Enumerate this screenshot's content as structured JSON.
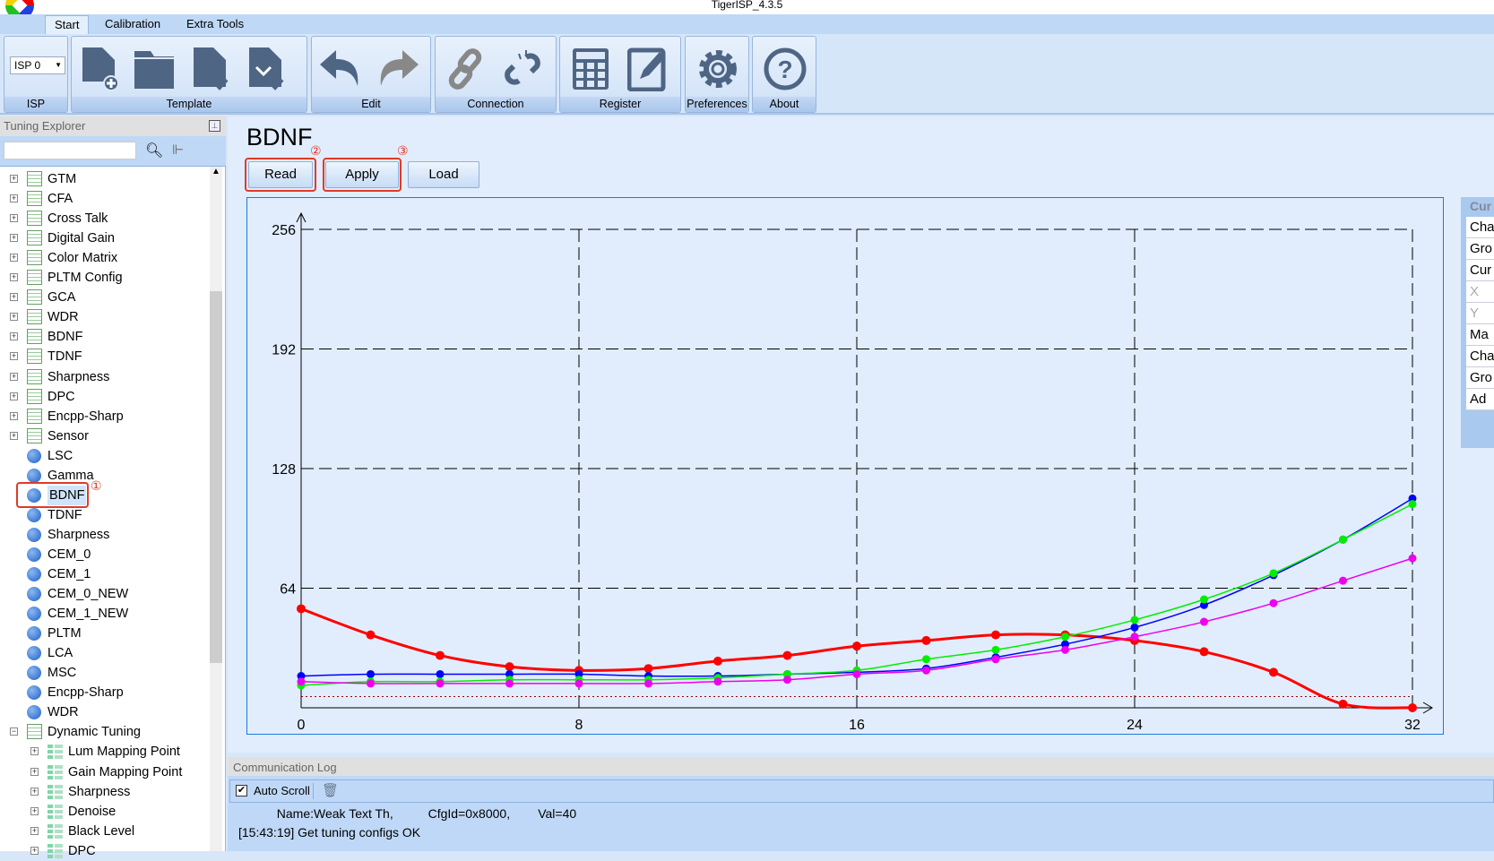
{
  "app": {
    "title": "TigerISP_4.3.5"
  },
  "tabs": [
    "Start",
    "Calibration",
    "Extra Tools"
  ],
  "ribbon": {
    "isp": {
      "select_value": "ISP 0",
      "label": "ISP"
    },
    "template": {
      "label": "Template"
    },
    "edit": {
      "label": "Edit"
    },
    "connection": {
      "label": "Connection"
    },
    "register": {
      "label": "Register"
    },
    "preferences": {
      "label": "Preferences"
    },
    "about": {
      "label": "About"
    }
  },
  "explorer": {
    "title": "Tuning Explorer",
    "search_value": "",
    "items": [
      {
        "label": "GTM",
        "type": "list",
        "expander": "+"
      },
      {
        "label": "CFA",
        "type": "list",
        "expander": "+"
      },
      {
        "label": "Cross Talk",
        "type": "list",
        "expander": "+"
      },
      {
        "label": "Digital Gain",
        "type": "list",
        "expander": "+"
      },
      {
        "label": "Color Matrix",
        "type": "list",
        "expander": "+"
      },
      {
        "label": "PLTM Config",
        "type": "list",
        "expander": "+"
      },
      {
        "label": "GCA",
        "type": "list",
        "expander": "+"
      },
      {
        "label": "WDR",
        "type": "list",
        "expander": "+"
      },
      {
        "label": "BDNF",
        "type": "list",
        "expander": "+"
      },
      {
        "label": "TDNF",
        "type": "list",
        "expander": "+"
      },
      {
        "label": "Sharpness",
        "type": "list",
        "expander": "+"
      },
      {
        "label": "DPC",
        "type": "list",
        "expander": "+"
      },
      {
        "label": "Encpp-Sharp",
        "type": "list",
        "expander": "+"
      },
      {
        "label": "Sensor",
        "type": "list",
        "expander": "+"
      },
      {
        "label": "LSC",
        "type": "ball"
      },
      {
        "label": "Gamma",
        "type": "ball"
      },
      {
        "label": "BDNF",
        "type": "ball",
        "selected": true
      },
      {
        "label": "TDNF",
        "type": "ball"
      },
      {
        "label": "Sharpness",
        "type": "ball"
      },
      {
        "label": "CEM_0",
        "type": "ball"
      },
      {
        "label": "CEM_1",
        "type": "ball"
      },
      {
        "label": "CEM_0_NEW",
        "type": "ball"
      },
      {
        "label": "CEM_1_NEW",
        "type": "ball"
      },
      {
        "label": "PLTM",
        "type": "ball"
      },
      {
        "label": "LCA",
        "type": "ball"
      },
      {
        "label": "MSC",
        "type": "ball"
      },
      {
        "label": "Encpp-Sharp",
        "type": "ball"
      },
      {
        "label": "WDR",
        "type": "ball"
      },
      {
        "label": "Dynamic Tuning",
        "type": "list",
        "expander": "−"
      },
      {
        "label": "Lum Mapping Point",
        "type": "grid",
        "expander": "+",
        "child": true
      },
      {
        "label": "Gain Mapping Point",
        "type": "grid",
        "expander": "+",
        "child": true
      },
      {
        "label": "Sharpness",
        "type": "grid",
        "expander": "+",
        "child": true
      },
      {
        "label": "Denoise",
        "type": "grid",
        "expander": "+",
        "child": true
      },
      {
        "label": "Black Level",
        "type": "grid",
        "expander": "+",
        "child": true
      },
      {
        "label": "DPC",
        "type": "grid",
        "expander": "+",
        "child": true
      }
    ]
  },
  "main": {
    "title": "BDNF",
    "buttons": {
      "read": "Read",
      "apply": "Apply",
      "load": "Load"
    },
    "annotations": {
      "a1": "①",
      "a2": "②",
      "a3": "③"
    }
  },
  "right_panel": {
    "header": "Cur",
    "rows": [
      "Cha",
      "Gro",
      "Cur",
      "X",
      "Y",
      "Ma",
      "Cha",
      "Gro",
      "Ad"
    ]
  },
  "chart_data": {
    "type": "line",
    "x": [
      0,
      2,
      4,
      6,
      8,
      10,
      12,
      14,
      16,
      18,
      20,
      22,
      24,
      26,
      28,
      30,
      32
    ],
    "xlim": [
      0,
      32
    ],
    "ylim": [
      0,
      256
    ],
    "xticks": [
      "0",
      "8",
      "16",
      "24",
      "32"
    ],
    "yticks": [
      "64",
      "128",
      "192",
      "256"
    ],
    "grid": true,
    "threshold_line": 6,
    "series": [
      {
        "color": "#ff0000",
        "values": [
          53,
          39,
          28,
          22,
          20,
          21,
          25,
          28,
          33,
          36,
          39,
          39,
          36,
          30,
          19,
          2,
          0
        ]
      },
      {
        "color": "#0000ff",
        "values": [
          17,
          18,
          18,
          18,
          18,
          17,
          17,
          18,
          19,
          21,
          27,
          34,
          43,
          55,
          71,
          90,
          112
        ]
      },
      {
        "color": "#00ee00",
        "values": [
          12,
          14,
          14,
          15,
          15,
          15,
          16,
          18,
          20,
          26,
          31,
          38,
          47,
          58,
          72,
          90,
          109
        ]
      },
      {
        "color": "#ee00ee",
        "values": [
          14,
          13,
          13,
          13,
          13,
          13,
          14,
          15,
          18,
          20,
          26,
          31,
          38,
          46,
          56,
          68,
          80
        ]
      }
    ]
  },
  "log": {
    "title": "Communication Log",
    "auto_scroll": "Auto Scroll",
    "auto_scroll_checked": true,
    "lines": [
      "           Name:Weak Text Th,          CfgId=0x8000,        Val=40",
      "[15:43:19] Get tuning configs OK"
    ]
  }
}
